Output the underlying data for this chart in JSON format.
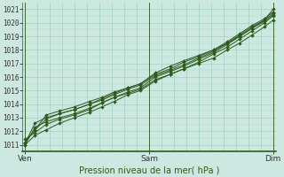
{
  "title": "Pression niveau de la mer( hPa )",
  "xlabel": "Pression niveau de la mer( hPa )",
  "x_tick_labels": [
    "Ven",
    "Sam",
    "Dim"
  ],
  "x_tick_positions": [
    0.0,
    1.0,
    2.0
  ],
  "ylim": [
    1010.5,
    1021.5
  ],
  "xlim": [
    -0.02,
    2.02
  ],
  "yticks": [
    1011,
    1012,
    1013,
    1014,
    1015,
    1016,
    1017,
    1018,
    1019,
    1020,
    1021
  ],
  "background_color": "#cce8e0",
  "grid_color": "#99ccbb",
  "line_color": "#2d5a1b",
  "axis_color": "#2d5a1b",
  "marker": "D",
  "marker_size": 2.0,
  "line_width": 0.7,
  "lines": [
    {
      "x": [
        0.0,
        0.08,
        0.17,
        0.28,
        0.4,
        0.52,
        0.62,
        0.72,
        0.83,
        0.93,
        1.05,
        1.17,
        1.28,
        1.4,
        1.52,
        1.63,
        1.73,
        1.83,
        1.93,
        2.0
      ],
      "y": [
        1011.0,
        1011.7,
        1012.1,
        1012.6,
        1013.0,
        1013.4,
        1013.8,
        1014.2,
        1014.7,
        1015.0,
        1015.7,
        1016.2,
        1016.6,
        1017.1,
        1017.7,
        1018.2,
        1018.8,
        1019.4,
        1020.0,
        1020.5
      ]
    },
    {
      "x": [
        0.0,
        0.08,
        0.17,
        0.28,
        0.4,
        0.52,
        0.62,
        0.72,
        0.83,
        0.93,
        1.05,
        1.17,
        1.28,
        1.4,
        1.52,
        1.63,
        1.73,
        1.83,
        1.93,
        2.0
      ],
      "y": [
        1011.0,
        1012.3,
        1012.7,
        1013.0,
        1013.3,
        1013.7,
        1014.1,
        1014.5,
        1014.9,
        1015.2,
        1016.0,
        1016.4,
        1016.8,
        1017.3,
        1017.8,
        1018.4,
        1019.0,
        1019.6,
        1020.1,
        1020.6
      ]
    },
    {
      "x": [
        0.0,
        0.08,
        0.17,
        0.28,
        0.4,
        0.52,
        0.62,
        0.72,
        0.83,
        0.93,
        1.05,
        1.17,
        1.28,
        1.4,
        1.52,
        1.63,
        1.73,
        1.83,
        1.93,
        2.0
      ],
      "y": [
        1011.1,
        1012.6,
        1013.0,
        1013.3,
        1013.6,
        1014.0,
        1014.3,
        1014.7,
        1015.1,
        1015.4,
        1016.1,
        1016.5,
        1016.9,
        1017.4,
        1017.9,
        1018.5,
        1019.1,
        1019.7,
        1020.2,
        1020.7
      ]
    },
    {
      "x": [
        0.0,
        0.08,
        0.17,
        0.28,
        0.4,
        0.52,
        0.62,
        0.72,
        0.83,
        0.93,
        1.05,
        1.17,
        1.28,
        1.4,
        1.52,
        1.63,
        1.73,
        1.83,
        1.93,
        2.0
      ],
      "y": [
        1011.2,
        1012.1,
        1013.2,
        1013.5,
        1013.8,
        1014.2,
        1014.5,
        1014.9,
        1015.2,
        1015.5,
        1016.2,
        1016.6,
        1017.1,
        1017.5,
        1018.0,
        1018.6,
        1019.2,
        1019.8,
        1020.3,
        1020.8
      ]
    },
    {
      "x": [
        0.0,
        0.08,
        0.17,
        0.28,
        0.4,
        0.52,
        0.62,
        0.72,
        0.83,
        0.93,
        1.05,
        1.17,
        1.28,
        1.4,
        1.52,
        1.63,
        1.73,
        1.83,
        1.93,
        2.0
      ],
      "y": [
        1011.4,
        1011.9,
        1012.5,
        1012.9,
        1013.2,
        1013.6,
        1014.1,
        1014.5,
        1014.8,
        1015.1,
        1015.8,
        1016.2,
        1016.6,
        1017.0,
        1017.4,
        1018.0,
        1018.5,
        1019.1,
        1019.7,
        1020.2
      ]
    },
    {
      "x": [
        0.08,
        0.17,
        0.28,
        0.4,
        0.52,
        0.62,
        0.72,
        0.83,
        0.93,
        1.05,
        1.17,
        1.28,
        1.4,
        1.52,
        1.63,
        1.73,
        1.83,
        1.93,
        2.0
      ],
      "y": [
        1012.1,
        1012.9,
        1013.3,
        1013.6,
        1014.0,
        1014.4,
        1014.8,
        1015.2,
        1015.5,
        1016.3,
        1016.8,
        1017.2,
        1017.6,
        1018.0,
        1018.5,
        1019.0,
        1019.6,
        1020.2,
        1021.0
      ]
    }
  ]
}
